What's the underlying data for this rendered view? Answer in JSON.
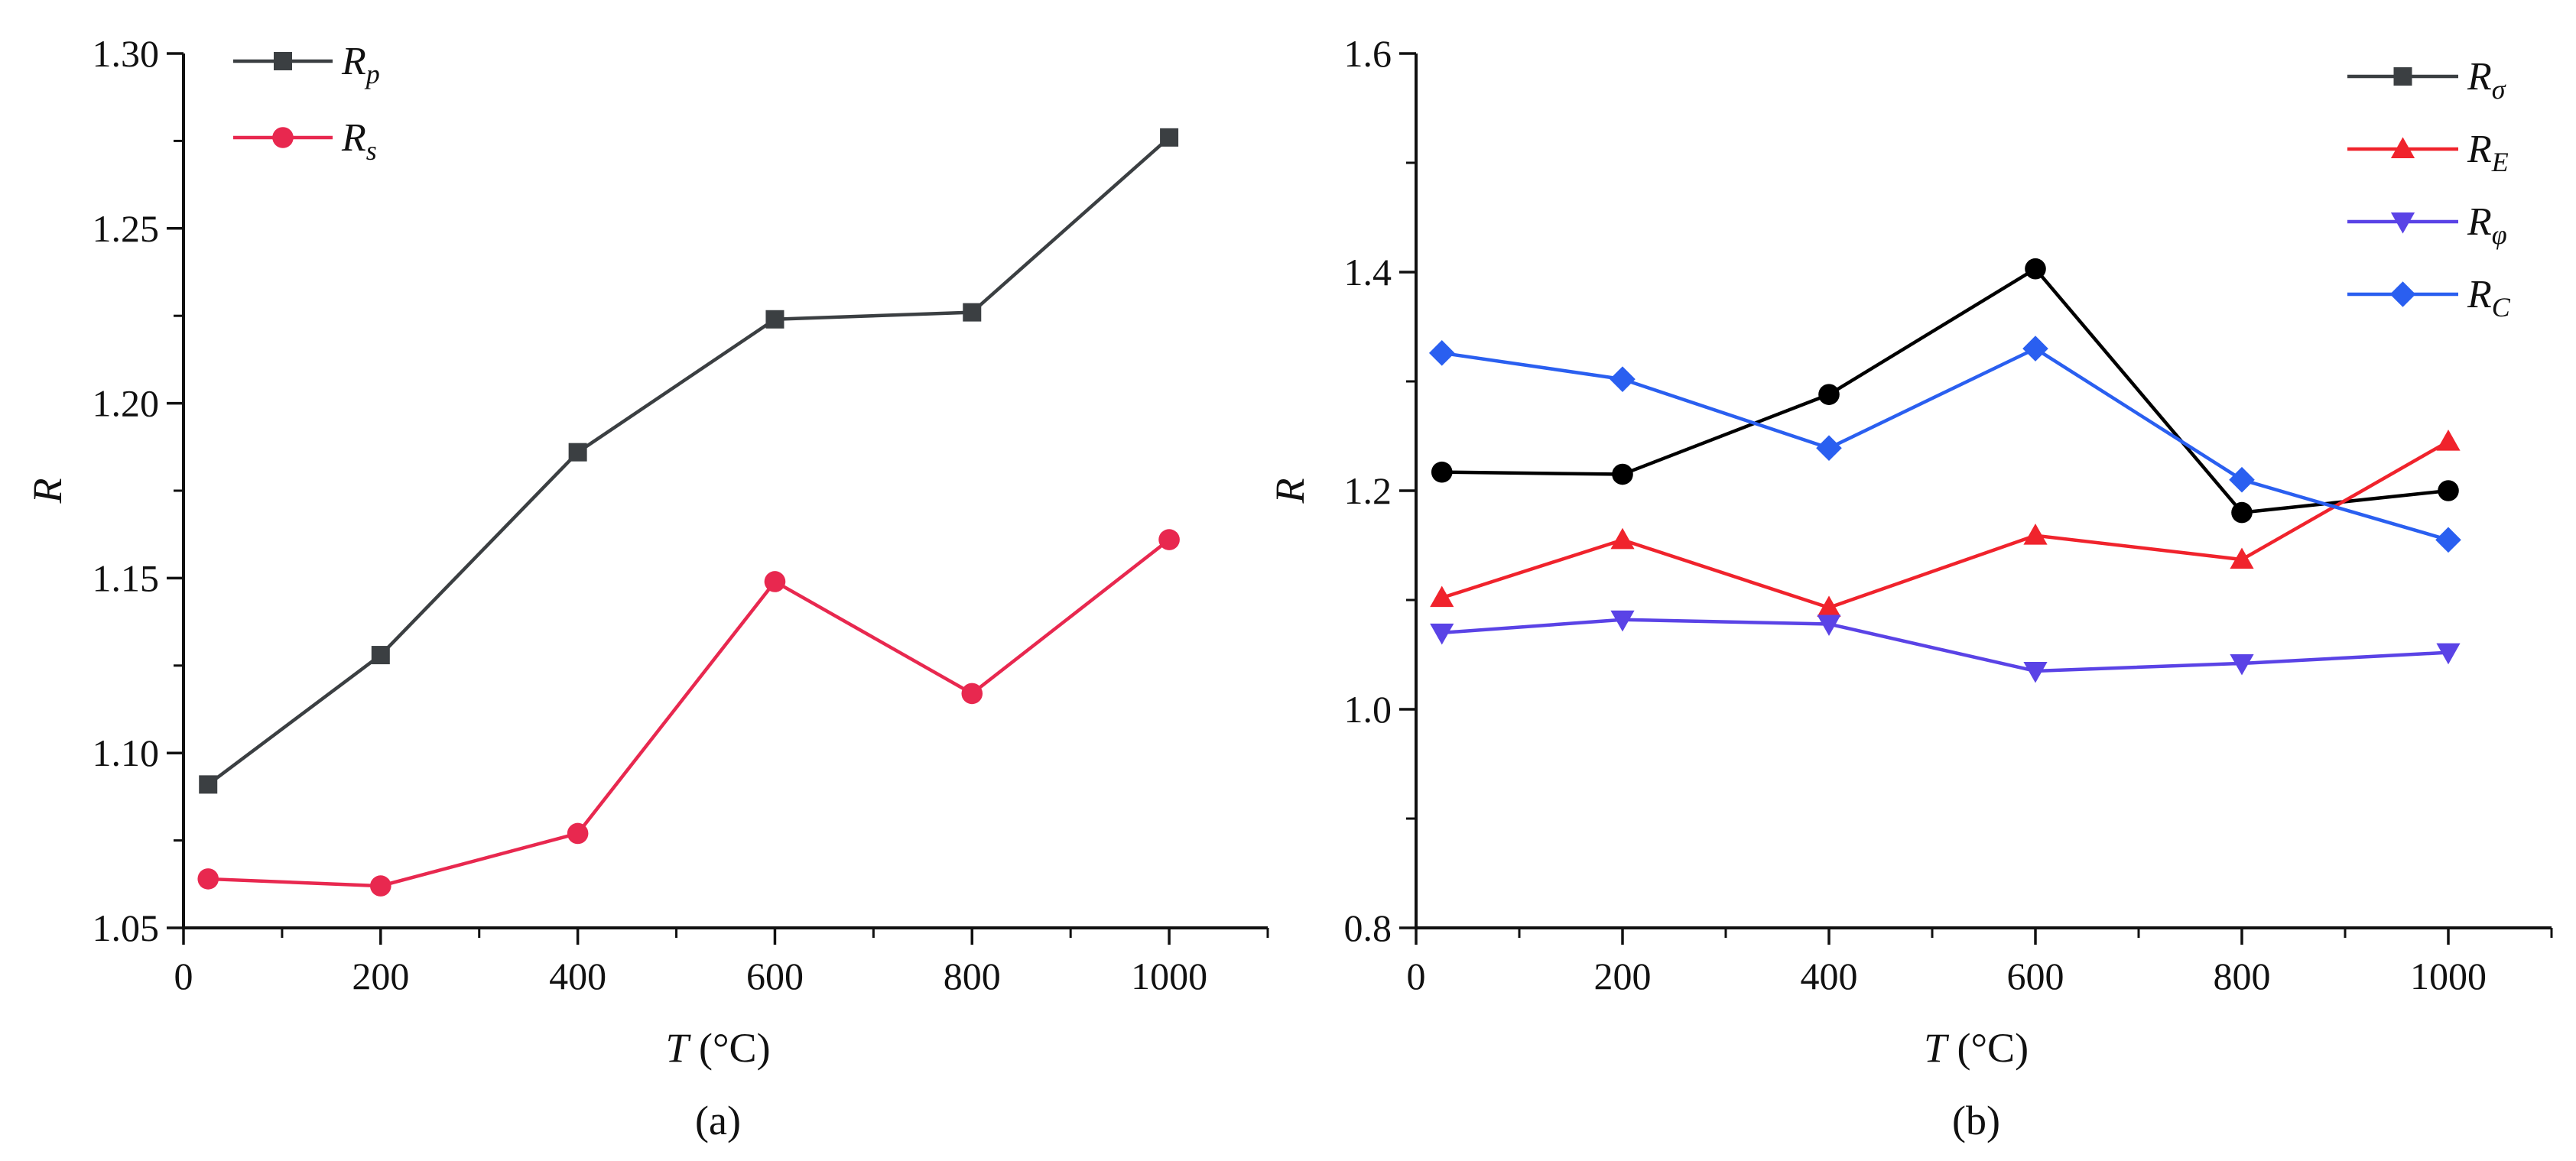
{
  "chart_data": [
    {
      "type": "line",
      "panel_label": "(a)",
      "xlabel": "T",
      "xlabel_unit": " (°C)",
      "ylabel": "R",
      "xlim": [
        0,
        1100
      ],
      "ylim": [
        1.05,
        1.3
      ],
      "xticks": [
        0,
        200,
        400,
        600,
        800,
        1000
      ],
      "xtick_labels": [
        "0",
        "200",
        "400",
        "600",
        "800",
        "1000"
      ],
      "yticks": [
        1.05,
        1.1,
        1.15,
        1.2,
        1.25,
        1.3
      ],
      "ytick_labels": [
        "1.05",
        "1.10",
        "1.15",
        "1.20",
        "1.25",
        "1.30"
      ],
      "legend_position": "top-left",
      "series": [
        {
          "name": "Rp",
          "label_main": "R",
          "label_sub": "p",
          "color": "#3b3f42",
          "marker": "square",
          "x": [
            25,
            200,
            400,
            600,
            800,
            1000
          ],
          "values": [
            1.091,
            1.128,
            1.186,
            1.224,
            1.226,
            1.276
          ]
        },
        {
          "name": "Rs",
          "label_main": "R",
          "label_sub": "s",
          "color": "#e8284f",
          "marker": "circle",
          "x": [
            25,
            200,
            400,
            600,
            800,
            1000
          ],
          "values": [
            1.064,
            1.062,
            1.077,
            1.149,
            1.117,
            1.161
          ]
        }
      ]
    },
    {
      "type": "line",
      "panel_label": "(b)",
      "xlabel": "T",
      "xlabel_unit": " (°C)",
      "ylabel": "R",
      "xlim": [
        0,
        1100
      ],
      "ylim": [
        0.8,
        1.6
      ],
      "xticks": [
        0,
        200,
        400,
        600,
        800,
        1000
      ],
      "xtick_labels": [
        "0",
        "200",
        "400",
        "600",
        "800",
        "1000"
      ],
      "yticks": [
        0.8,
        1.0,
        1.2,
        1.4,
        1.6
      ],
      "ytick_labels": [
        "0.8",
        "1.0",
        "1.2",
        "1.4",
        "1.6"
      ],
      "legend_position": "top-right",
      "series": [
        {
          "name": "Rσ",
          "label_main": "R",
          "label_sub": "σ",
          "color": "#000000",
          "marker": "circle",
          "legend_marker": "square",
          "legend_color": "#3b3f42",
          "x": [
            25,
            200,
            400,
            600,
            800,
            1000
          ],
          "values": [
            1.217,
            1.215,
            1.288,
            1.403,
            1.18,
            1.2
          ]
        },
        {
          "name": "RE",
          "label_main": "R",
          "label_sub": "E",
          "color": "#f0232c",
          "marker": "triangle-up",
          "x": [
            25,
            200,
            400,
            600,
            800,
            1000
          ],
          "values": [
            1.102,
            1.155,
            1.093,
            1.159,
            1.137,
            1.245
          ]
        },
        {
          "name": "Rφ",
          "label_main": "R",
          "label_sub": "φ",
          "color": "#5a43e6",
          "marker": "triangle-down",
          "x": [
            25,
            200,
            400,
            600,
            800,
            1000
          ],
          "values": [
            1.07,
            1.082,
            1.078,
            1.035,
            1.042,
            1.052
          ]
        },
        {
          "name": "RC",
          "label_main": "R",
          "label_sub": "C",
          "color": "#2a5ff0",
          "marker": "diamond",
          "x": [
            25,
            200,
            400,
            600,
            800,
            1000
          ],
          "values": [
            1.326,
            1.302,
            1.239,
            1.33,
            1.21,
            1.155
          ]
        }
      ]
    }
  ]
}
